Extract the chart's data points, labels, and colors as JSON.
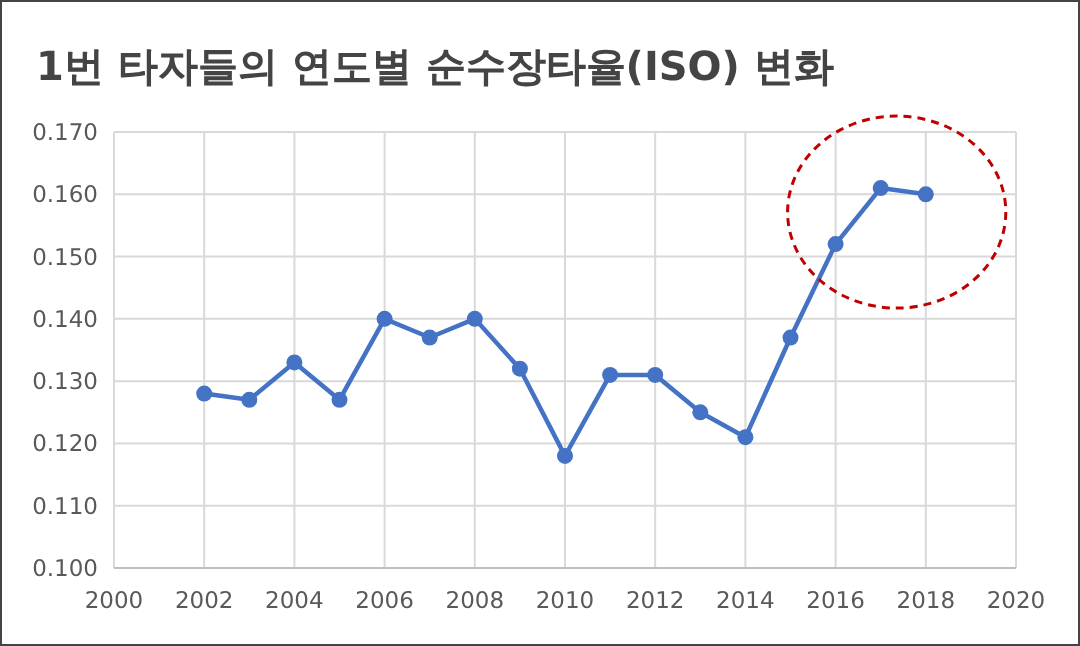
{
  "chart_data": {
    "type": "line",
    "title": "1번 타자들의 연도별 순수장타율(ISO) 변화",
    "x": [
      2002,
      2003,
      2004,
      2005,
      2006,
      2007,
      2008,
      2009,
      2010,
      2011,
      2012,
      2013,
      2014,
      2015,
      2016,
      2017,
      2018
    ],
    "series": [
      {
        "color": "#4472c4",
        "values": [
          0.128,
          0.127,
          0.133,
          0.127,
          0.14,
          0.137,
          0.14,
          0.132,
          0.118,
          0.131,
          0.131,
          0.125,
          0.121,
          0.137,
          0.152,
          0.161,
          0.16
        ]
      }
    ],
    "xlim": [
      2000,
      2020
    ],
    "xticks": [
      2000,
      2002,
      2004,
      2006,
      2008,
      2010,
      2012,
      2014,
      2016,
      2018,
      2020
    ],
    "ylim": [
      0.1,
      0.17
    ],
    "yticks": [
      {
        "value": 0.1,
        "label": "0.100"
      },
      {
        "value": 0.11,
        "label": "0.110"
      },
      {
        "value": 0.12,
        "label": "0.120"
      },
      {
        "value": 0.13,
        "label": "0.130"
      },
      {
        "value": 0.14,
        "label": "0.140"
      },
      {
        "value": 0.15,
        "label": "0.150"
      },
      {
        "value": 0.16,
        "label": "0.160"
      },
      {
        "value": 0.17,
        "label": "0.170"
      }
    ],
    "grid": true,
    "marker": "circle",
    "line_style": "solid"
  }
}
